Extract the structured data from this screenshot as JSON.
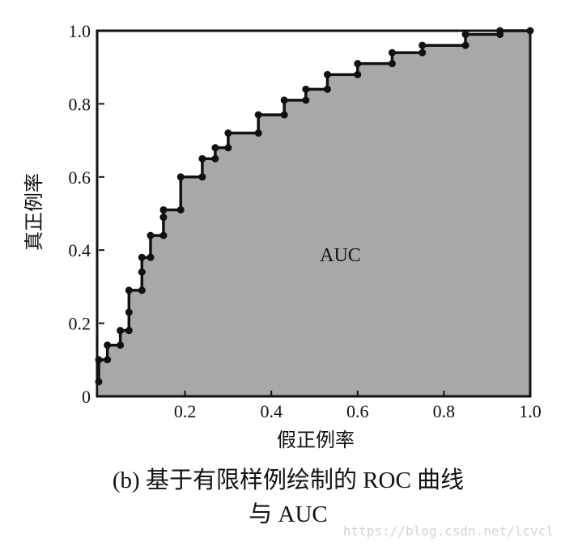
{
  "chart_data": {
    "type": "line",
    "title_lines": [
      "(b) 基于有限样例绘制的 ROC 曲线",
      "与 AUC"
    ],
    "xlabel": "假正例率",
    "ylabel": "真正例率",
    "annotation": "AUC",
    "watermark": "https://blog.csdn.net/lcvcl",
    "x": [
      0,
      0,
      0.02,
      0.02,
      0.05,
      0.05,
      0.07,
      0.07,
      0.07,
      0.1,
      0.1,
      0.1,
      0.12,
      0.12,
      0.15,
      0.15,
      0.15,
      0.19,
      0.19,
      0.24,
      0.24,
      0.27,
      0.27,
      0.3,
      0.3,
      0.37,
      0.37,
      0.43,
      0.43,
      0.48,
      0.48,
      0.53,
      0.53,
      0.6,
      0.6,
      0.68,
      0.68,
      0.75,
      0.75,
      0.85,
      0.85,
      0.93,
      0.93,
      1
    ],
    "values": [
      0.04,
      0.1,
      0.1,
      0.14,
      0.14,
      0.18,
      0.18,
      0.23,
      0.29,
      0.29,
      0.34,
      0.38,
      0.38,
      0.44,
      0.44,
      0.49,
      0.51,
      0.51,
      0.6,
      0.6,
      0.65,
      0.65,
      0.68,
      0.68,
      0.72,
      0.72,
      0.77,
      0.77,
      0.81,
      0.81,
      0.84,
      0.84,
      0.88,
      0.88,
      0.91,
      0.91,
      0.94,
      0.94,
      0.96,
      0.96,
      0.99,
      0.99,
      1,
      1
    ],
    "color": "#111111",
    "area_color": "#a8a8a8",
    "xlim": [
      0,
      1
    ],
    "ylim": [
      0,
      1
    ],
    "xticks": [
      0.2,
      0.4,
      0.6,
      0.8,
      {
        "value": 1,
        "label": "1.0"
      }
    ],
    "yticks": [
      0,
      0.2,
      0.4,
      0.6,
      0.8,
      {
        "value": 1,
        "label": "1.0"
      }
    ]
  }
}
